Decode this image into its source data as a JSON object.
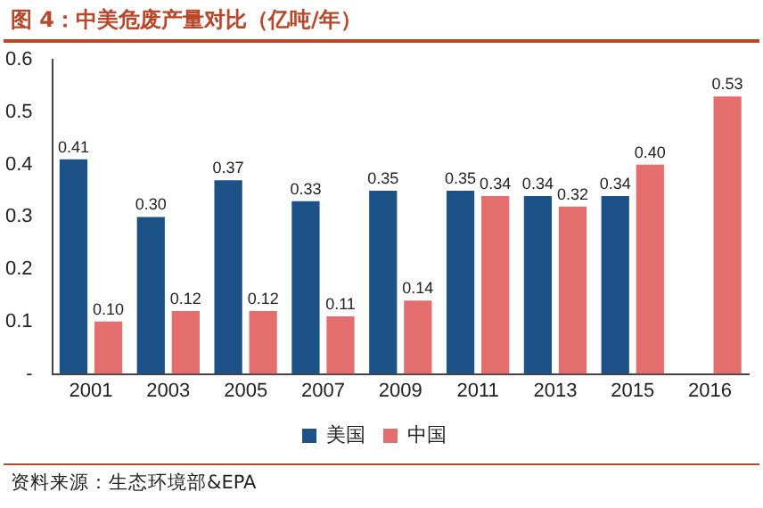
{
  "chart_data": {
    "type": "bar",
    "title": "图 4：中美危废产量对比（亿吨/年）",
    "categories": [
      "2001",
      "2003",
      "2005",
      "2007",
      "2009",
      "2011",
      "2013",
      "2015",
      "2016"
    ],
    "series": [
      {
        "name": "美国",
        "color": "#1d5288",
        "values": [
          0.41,
          0.3,
          0.37,
          0.33,
          0.35,
          0.35,
          0.34,
          0.34,
          null
        ],
        "value_labels": [
          "0.41",
          "0.30",
          "0.37",
          "0.33",
          "0.35",
          "0.35",
          "0.34",
          "0.34",
          null
        ]
      },
      {
        "name": "中国",
        "color": "#e46e6e",
        "values": [
          0.1,
          0.12,
          0.12,
          0.11,
          0.14,
          0.34,
          0.32,
          0.4,
          0.53
        ],
        "value_labels": [
          "0.10",
          "0.12",
          "0.12",
          "0.11",
          "0.14",
          "0.34",
          "0.32",
          "0.40",
          "0.53"
        ]
      }
    ],
    "ylim": [
      0,
      0.6
    ],
    "yticks": [
      {
        "value": 0,
        "label": "-"
      },
      0.1,
      0.2,
      0.3,
      0.4,
      0.5,
      0.6
    ],
    "grid": false,
    "legend": "bottom",
    "annotations": [
      "资料来源：生态环境部&EPA"
    ]
  }
}
